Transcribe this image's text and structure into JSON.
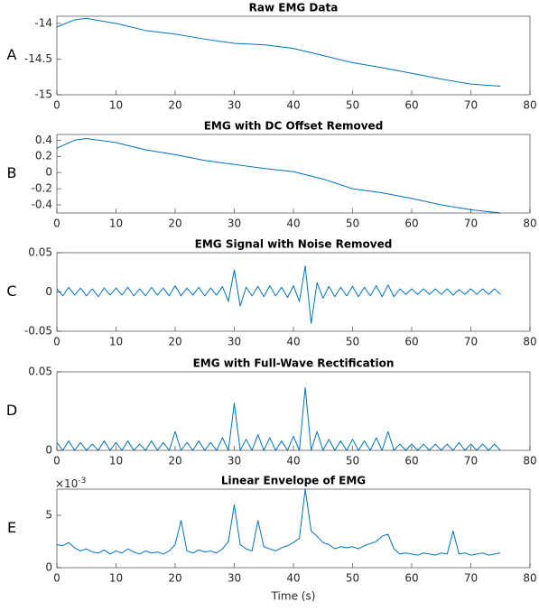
{
  "chart_data": [
    {
      "type": "line",
      "panel_label": "A",
      "title": "Raw EMG Data",
      "color": "#0072bd",
      "x": [
        0,
        3,
        5,
        10,
        15,
        20,
        25,
        30,
        35,
        40,
        45,
        50,
        55,
        60,
        65,
        70,
        75
      ],
      "values": [
        -14.05,
        -13.95,
        -13.93,
        -14.0,
        -14.1,
        -14.15,
        -14.22,
        -14.28,
        -14.3,
        -14.35,
        -14.45,
        -14.55,
        -14.62,
        -14.7,
        -14.78,
        -14.85,
        -14.88
      ],
      "xlim": [
        0,
        80
      ],
      "xticks": [
        0,
        10,
        20,
        30,
        40,
        50,
        60,
        70,
        80
      ],
      "ylim": [
        -15,
        -13.9
      ],
      "yticks": [
        -15,
        -14.5,
        -14
      ]
    },
    {
      "type": "line",
      "panel_label": "B",
      "title": "EMG with DC Offset Removed",
      "color": "#0072bd",
      "x": [
        0,
        3,
        5,
        10,
        15,
        20,
        25,
        30,
        35,
        40,
        45,
        50,
        55,
        60,
        65,
        70,
        75
      ],
      "values": [
        0.3,
        0.4,
        0.42,
        0.37,
        0.28,
        0.22,
        0.15,
        0.1,
        0.05,
        0.01,
        -0.08,
        -0.2,
        -0.25,
        -0.32,
        -0.4,
        -0.46,
        -0.5
      ],
      "xlim": [
        0,
        80
      ],
      "xticks": [
        0,
        10,
        20,
        30,
        40,
        50,
        60,
        70,
        80
      ],
      "ylim": [
        -0.5,
        0.47
      ],
      "yticks": [
        -0.4,
        -0.2,
        0,
        0.2,
        0.4
      ]
    },
    {
      "type": "line",
      "panel_label": "C",
      "title": "EMG Signal with Noise Removed",
      "color": "#0072bd",
      "x": [
        0,
        1,
        2,
        3,
        4,
        5,
        6,
        7,
        8,
        9,
        10,
        11,
        12,
        13,
        14,
        15,
        16,
        17,
        18,
        19,
        20,
        21,
        22,
        23,
        24,
        25,
        26,
        27,
        28,
        29,
        30,
        31,
        32,
        33,
        34,
        35,
        36,
        37,
        38,
        39,
        40,
        41,
        42,
        43,
        44,
        45,
        46,
        47,
        48,
        49,
        50,
        51,
        52,
        53,
        54,
        55,
        56,
        57,
        58,
        59,
        60,
        61,
        62,
        63,
        64,
        65,
        66,
        67,
        68,
        69,
        70,
        71,
        72,
        73,
        74,
        75
      ],
      "values": [
        0.004,
        -0.005,
        0.006,
        -0.004,
        0.005,
        -0.005,
        0.004,
        -0.006,
        0.005,
        -0.004,
        0.005,
        -0.004,
        0.006,
        -0.005,
        0.004,
        -0.005,
        0.006,
        -0.004,
        0.005,
        -0.005,
        0.008,
        -0.005,
        0.005,
        -0.004,
        0.006,
        -0.005,
        0.005,
        -0.004,
        0.007,
        -0.012,
        0.028,
        -0.018,
        0.006,
        -0.005,
        0.007,
        -0.006,
        0.008,
        -0.005,
        0.006,
        -0.007,
        0.008,
        -0.012,
        0.033,
        -0.04,
        0.012,
        -0.008,
        0.007,
        -0.006,
        0.006,
        -0.005,
        0.007,
        -0.006,
        0.006,
        -0.005,
        0.008,
        -0.006,
        0.009,
        -0.006,
        0.004,
        -0.003,
        0.004,
        -0.003,
        0.004,
        -0.003,
        0.004,
        -0.003,
        0.004,
        -0.004,
        0.003,
        -0.003,
        0.004,
        -0.003,
        0.004,
        -0.003,
        0.004,
        -0.003
      ],
      "xlim": [
        0,
        80
      ],
      "xticks": [
        0,
        10,
        20,
        30,
        40,
        50,
        60,
        70,
        80
      ],
      "ylim": [
        -0.05,
        0.05
      ],
      "yticks": [
        -0.05,
        0,
        0.05
      ]
    },
    {
      "type": "line",
      "panel_label": "D",
      "title": "EMG with Full-Wave Rectification",
      "color": "#0072bd",
      "x": [
        0,
        1,
        2,
        3,
        4,
        5,
        6,
        7,
        8,
        9,
        10,
        11,
        12,
        13,
        14,
        15,
        16,
        17,
        18,
        19,
        20,
        21,
        22,
        23,
        24,
        25,
        26,
        27,
        28,
        29,
        30,
        31,
        32,
        33,
        34,
        35,
        36,
        37,
        38,
        39,
        40,
        41,
        42,
        43,
        44,
        45,
        46,
        47,
        48,
        49,
        50,
        51,
        52,
        53,
        54,
        55,
        56,
        57,
        58,
        59,
        60,
        61,
        62,
        63,
        64,
        65,
        66,
        67,
        68,
        69,
        70,
        71,
        72,
        73,
        74,
        75
      ],
      "values": [
        0.005,
        0,
        0.006,
        0,
        0.005,
        0,
        0.004,
        0,
        0.006,
        0,
        0.005,
        0,
        0.006,
        0,
        0.004,
        0,
        0.006,
        0,
        0.005,
        0,
        0.012,
        0,
        0.005,
        0,
        0.006,
        0,
        0.005,
        0,
        0.008,
        0,
        0.03,
        0,
        0.007,
        0,
        0.01,
        0,
        0.008,
        0,
        0.006,
        0,
        0.009,
        0,
        0.04,
        0,
        0.012,
        0,
        0.007,
        0,
        0.006,
        0,
        0.007,
        0,
        0.006,
        0,
        0.008,
        0,
        0.012,
        0,
        0.004,
        0,
        0.004,
        0,
        0.004,
        0,
        0.004,
        0,
        0.004,
        0,
        0.005,
        0,
        0.004,
        0,
        0.004,
        0,
        0.004,
        0
      ],
      "xlim": [
        0,
        80
      ],
      "xticks": [
        0,
        10,
        20,
        30,
        40,
        50,
        60,
        70,
        80
      ],
      "ylim": [
        0,
        0.05
      ],
      "yticks": [
        0,
        0.05
      ]
    },
    {
      "type": "line",
      "panel_label": "E",
      "title": "Linear Envelope of EMG",
      "color": "#0072bd",
      "y_multiplier": "×10",
      "y_multiplier_exponent": "-3",
      "x_label": "Time (s)",
      "x": [
        0,
        1,
        2,
        3,
        4,
        5,
        6,
        7,
        8,
        9,
        10,
        11,
        12,
        13,
        14,
        15,
        16,
        17,
        18,
        19,
        20,
        21,
        22,
        23,
        24,
        25,
        26,
        27,
        28,
        29,
        30,
        31,
        32,
        33,
        34,
        35,
        36,
        37,
        38,
        39,
        40,
        41,
        42,
        43,
        44,
        45,
        46,
        47,
        48,
        49,
        50,
        51,
        52,
        53,
        54,
        55,
        56,
        57,
        58,
        59,
        60,
        61,
        62,
        63,
        64,
        65,
        66,
        67,
        68,
        69,
        70,
        71,
        72,
        73,
        74,
        75
      ],
      "values": [
        0.0022,
        0.0021,
        0.0024,
        0.0019,
        0.0016,
        0.0018,
        0.0015,
        0.0014,
        0.0017,
        0.0013,
        0.0016,
        0.0014,
        0.0018,
        0.0015,
        0.0013,
        0.0016,
        0.0014,
        0.0015,
        0.0013,
        0.0016,
        0.0022,
        0.0045,
        0.0016,
        0.0014,
        0.0017,
        0.0015,
        0.0016,
        0.0014,
        0.0018,
        0.0025,
        0.006,
        0.0022,
        0.0018,
        0.0016,
        0.0045,
        0.002,
        0.0018,
        0.0016,
        0.0019,
        0.0021,
        0.0024,
        0.0028,
        0.0075,
        0.0035,
        0.003,
        0.0024,
        0.0022,
        0.0018,
        0.002,
        0.0019,
        0.002,
        0.0018,
        0.0021,
        0.0023,
        0.0025,
        0.003,
        0.0032,
        0.0018,
        0.0013,
        0.0014,
        0.0013,
        0.0012,
        0.0014,
        0.0013,
        0.0012,
        0.0014,
        0.0013,
        0.0035,
        0.0013,
        0.0014,
        0.0012,
        0.0013,
        0.0014,
        0.0012,
        0.0013,
        0.0014
      ],
      "xlim": [
        0,
        80
      ],
      "xticks": [
        0,
        10,
        20,
        30,
        40,
        50,
        60,
        70,
        80
      ],
      "ylim": [
        0,
        0.0075
      ],
      "yticks": [
        0,
        {
          "value": 0.005,
          "label": "5"
        }
      ]
    }
  ]
}
